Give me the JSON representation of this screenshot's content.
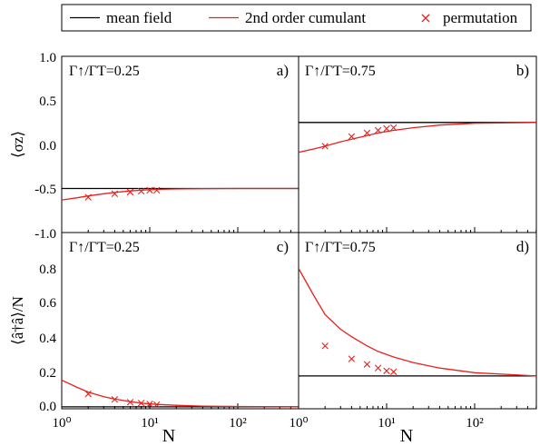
{
  "legend": {
    "items": [
      {
        "label": "mean field",
        "kind": "line",
        "color": "#000000"
      },
      {
        "label": "2nd order cumulant",
        "kind": "line",
        "color": "#e8211d"
      },
      {
        "label": "permutation",
        "kind": "marker",
        "color": "#e8211d"
      }
    ]
  },
  "axes": {
    "x_label": "N",
    "y_label_top": "⟨σz⟩",
    "y_label_bottom": "⟨â†â⟩/N",
    "x_ticks": [
      "10⁰",
      "10¹",
      "10²",
      "10⁰",
      "10¹",
      "10²"
    ],
    "y_ticks_top": [
      "1.0",
      "0.5",
      "0.0",
      "-0.5",
      "-1.0"
    ],
    "y_ticks_bottom": [
      "0.8",
      "0.6",
      "0.4",
      "0.2",
      "0.0"
    ]
  },
  "chart_data": [
    {
      "panel": "a)",
      "type": "line",
      "annotation": "Γ↑/ΓT=0.25",
      "xscale": "log",
      "xlim": [
        1,
        500
      ],
      "ylim": [
        -1.0,
        1.0
      ],
      "series": [
        {
          "name": "mean field",
          "type": "line",
          "x": [
            1,
            500
          ],
          "y": [
            -0.5,
            -0.5
          ]
        },
        {
          "name": "2nd order cumulant",
          "type": "line",
          "x": [
            1,
            1.5,
            2,
            3,
            4,
            6,
            8,
            12,
            20,
            40,
            100,
            500
          ],
          "y": [
            -0.63,
            -0.605,
            -0.585,
            -0.56,
            -0.545,
            -0.528,
            -0.52,
            -0.51,
            -0.505,
            -0.502,
            -0.5,
            -0.5
          ]
        },
        {
          "name": "permutation",
          "type": "scatter",
          "x": [
            2,
            4,
            6,
            8,
            10,
            12
          ],
          "y": [
            -0.6,
            -0.56,
            -0.54,
            -0.53,
            -0.52,
            -0.52
          ]
        }
      ]
    },
    {
      "panel": "b)",
      "type": "line",
      "annotation": "Γ↑/ΓT=0.75",
      "xscale": "log",
      "xlim": [
        1,
        500
      ],
      "ylim": [
        -1.0,
        1.0
      ],
      "series": [
        {
          "name": "mean field",
          "type": "line",
          "x": [
            1,
            500
          ],
          "y": [
            0.25,
            0.25
          ]
        },
        {
          "name": "2nd order cumulant",
          "type": "line",
          "x": [
            1,
            1.5,
            2,
            3,
            4,
            6,
            8,
            12,
            20,
            40,
            100,
            500
          ],
          "y": [
            -0.09,
            -0.05,
            -0.02,
            0.03,
            0.06,
            0.1,
            0.13,
            0.16,
            0.19,
            0.22,
            0.24,
            0.25
          ]
        },
        {
          "name": "permutation",
          "type": "scatter",
          "x": [
            2,
            4,
            6,
            8,
            10,
            12
          ],
          "y": [
            -0.02,
            0.09,
            0.13,
            0.16,
            0.18,
            0.19
          ]
        }
      ]
    },
    {
      "panel": "c)",
      "type": "line",
      "annotation": "Γ↑/ΓT=0.25",
      "xscale": "log",
      "xlim": [
        1,
        500
      ],
      "ylim": [
        -0.02,
        0.95
      ],
      "series": [
        {
          "name": "mean field",
          "type": "line",
          "x": [
            1,
            500
          ],
          "y": [
            0.0,
            0.0
          ]
        },
        {
          "name": "2nd order cumulant",
          "type": "line",
          "x": [
            1,
            1.5,
            2,
            3,
            4,
            6,
            8,
            12,
            20,
            40,
            100,
            500
          ],
          "y": [
            0.145,
            0.105,
            0.08,
            0.055,
            0.042,
            0.028,
            0.02,
            0.013,
            0.008,
            0.004,
            0.002,
            0.0
          ]
        },
        {
          "name": "permutation",
          "type": "scatter",
          "x": [
            2,
            4,
            6,
            8,
            10,
            12
          ],
          "y": [
            0.07,
            0.04,
            0.025,
            0.02,
            0.015,
            0.012
          ]
        }
      ]
    },
    {
      "panel": "d)",
      "type": "line",
      "annotation": "Γ↑/ΓT=0.75",
      "xscale": "log",
      "xlim": [
        1,
        500
      ],
      "ylim": [
        -0.02,
        0.95
      ],
      "series": [
        {
          "name": "mean field",
          "type": "line",
          "x": [
            1,
            500
          ],
          "y": [
            0.167,
            0.167
          ]
        },
        {
          "name": "2nd order cumulant",
          "type": "line",
          "x": [
            1,
            1.5,
            2,
            3,
            4,
            6,
            8,
            12,
            20,
            40,
            100,
            500
          ],
          "y": [
            0.75,
            0.6,
            0.5,
            0.42,
            0.38,
            0.33,
            0.3,
            0.27,
            0.24,
            0.21,
            0.185,
            0.167
          ]
        },
        {
          "name": "permutation",
          "type": "scatter",
          "x": [
            2,
            4,
            6,
            8,
            10,
            12
          ],
          "y": [
            0.33,
            0.26,
            0.23,
            0.21,
            0.195,
            0.19
          ]
        }
      ]
    }
  ]
}
